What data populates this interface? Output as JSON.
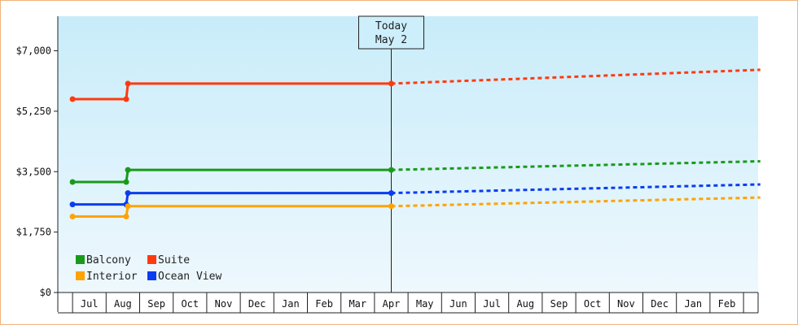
{
  "chart_data": {
    "type": "line",
    "ylim": [
      0,
      8000
    ],
    "y_ticks": [
      {
        "value": 0,
        "label": "$0"
      },
      {
        "value": 1750,
        "label": "$1,750"
      },
      {
        "value": 3500,
        "label": "$3,500"
      },
      {
        "value": 5250,
        "label": "$5,250"
      },
      {
        "value": 7000,
        "label": "$7,000"
      }
    ],
    "months": [
      "Jul",
      "Aug",
      "Sep",
      "Oct",
      "Nov",
      "Dec",
      "Jan",
      "Feb",
      "Mar",
      "Apr",
      "May",
      "Jun",
      "Jul",
      "Aug",
      "Sep",
      "Oct",
      "Nov",
      "Dec",
      "Jan",
      "Feb"
    ],
    "x_start_month": 0.5,
    "x_end_month": 21.0,
    "today": {
      "line1": "Today",
      "line2": "May 2",
      "month_pos": 10.0
    },
    "series": [
      {
        "name": "Suite",
        "color": "#ff3a10",
        "actual": [
          [
            0.5,
            5600
          ],
          [
            2.1,
            5600
          ],
          [
            2.15,
            6050
          ],
          [
            10.0,
            6050
          ]
        ],
        "markers": [
          [
            0.5,
            5600
          ],
          [
            2.1,
            5600
          ],
          [
            2.15,
            6050
          ],
          [
            10.0,
            6050
          ]
        ],
        "forecast": [
          [
            10.0,
            6050
          ],
          [
            21.0,
            6450
          ]
        ]
      },
      {
        "name": "Balcony",
        "color": "#1a9a1a",
        "actual": [
          [
            0.5,
            3200
          ],
          [
            2.1,
            3200
          ],
          [
            2.15,
            3550
          ],
          [
            10.0,
            3550
          ]
        ],
        "markers": [
          [
            0.5,
            3200
          ],
          [
            2.1,
            3200
          ],
          [
            2.15,
            3550
          ],
          [
            10.0,
            3550
          ]
        ],
        "forecast": [
          [
            10.0,
            3550
          ],
          [
            21.0,
            3800
          ]
        ]
      },
      {
        "name": "Ocean View",
        "color": "#0a3cf0",
        "actual": [
          [
            0.5,
            2550
          ],
          [
            2.1,
            2550
          ],
          [
            2.15,
            2880
          ],
          [
            10.0,
            2880
          ]
        ],
        "markers": [
          [
            0.5,
            2550
          ],
          [
            2.1,
            2550
          ],
          [
            2.15,
            2880
          ],
          [
            10.0,
            2880
          ]
        ],
        "forecast": [
          [
            10.0,
            2880
          ],
          [
            21.0,
            3130
          ]
        ]
      },
      {
        "name": "Interior",
        "color": "#ffa300",
        "actual": [
          [
            0.5,
            2200
          ],
          [
            2.1,
            2200
          ],
          [
            2.15,
            2500
          ],
          [
            10.0,
            2500
          ]
        ],
        "markers": [
          [
            0.5,
            2200
          ],
          [
            2.1,
            2200
          ],
          [
            2.15,
            2500
          ],
          [
            10.0,
            2500
          ]
        ],
        "forecast": [
          [
            10.0,
            2500
          ],
          [
            21.0,
            2750
          ]
        ]
      }
    ],
    "legend": [
      {
        "name": "Balcony",
        "color": "#1a9a1a"
      },
      {
        "name": "Suite",
        "color": "#ff3a10"
      },
      {
        "name": "Interior",
        "color": "#ffa300"
      },
      {
        "name": "Ocean View",
        "color": "#0a3cf0"
      }
    ],
    "legend_position": "bottom-left",
    "grid": false
  }
}
